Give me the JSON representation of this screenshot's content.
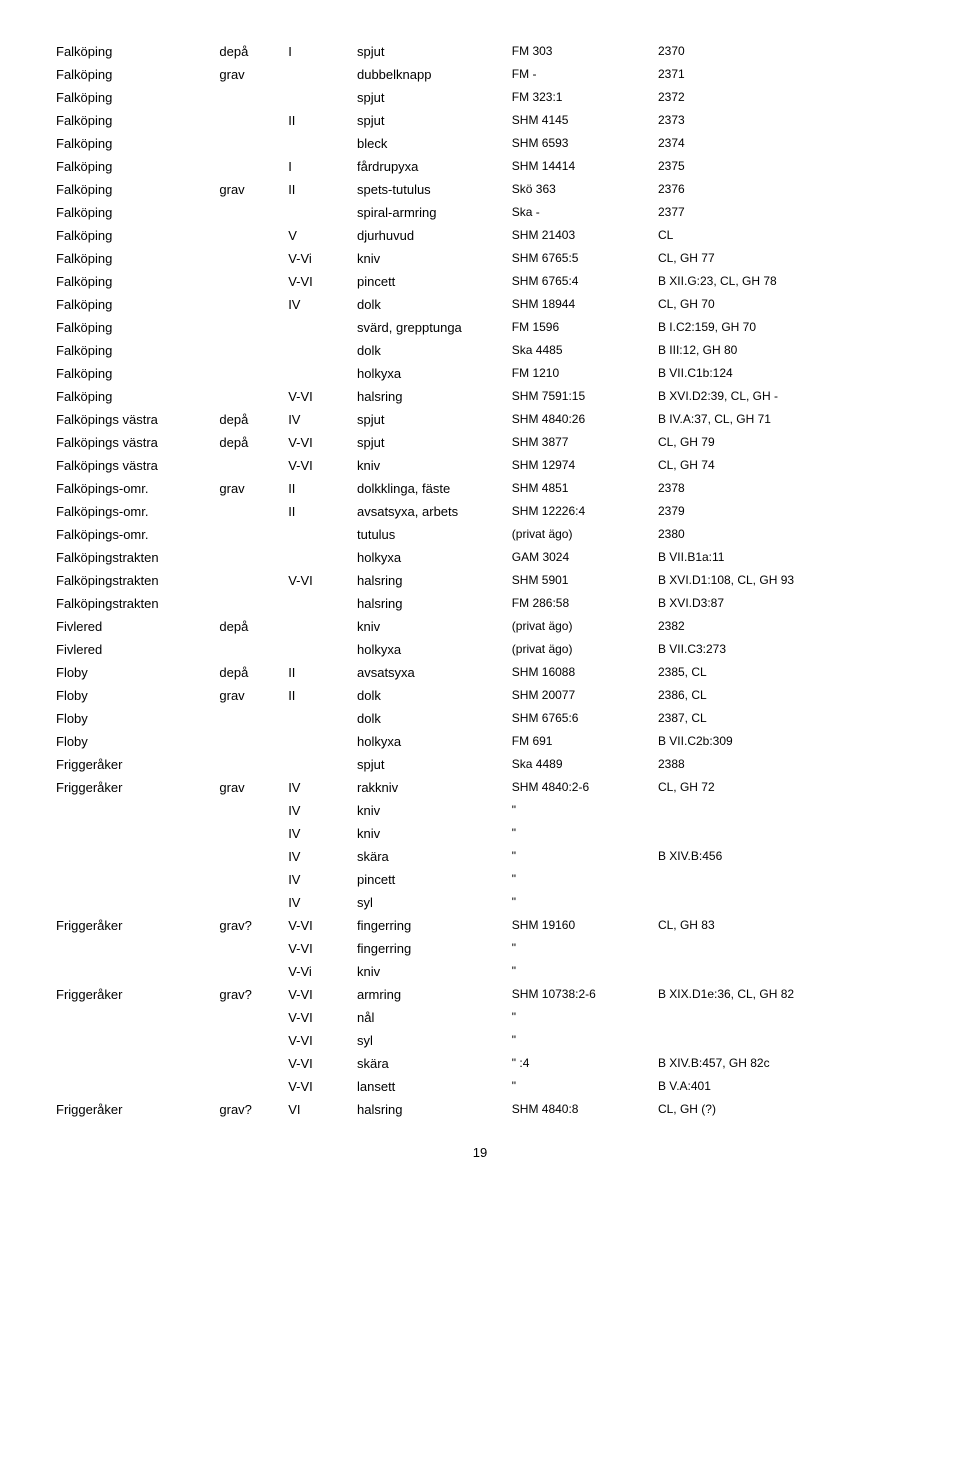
{
  "rows": [
    {
      "c1": "Falköping",
      "c2": "depå",
      "c3": "I",
      "c4": "spjut",
      "c5": "FM 303",
      "c6": "2370"
    },
    {
      "c1": "Falköping",
      "c2": "grav",
      "c3": "",
      "c4": "dubbelknapp",
      "c5": "FM -",
      "c6": "2371"
    },
    {
      "c1": "Falköping",
      "c2": "",
      "c3": "",
      "c4": "spjut",
      "c5": "FM 323:1",
      "c6": "2372"
    },
    {
      "c1": "Falköping",
      "c2": "",
      "c3": "II",
      "c4": "spjut",
      "c5": "SHM 4145",
      "c6": "2373"
    },
    {
      "c1": "Falköping",
      "c2": "",
      "c3": "",
      "c4": "bleck",
      "c5": "SHM 6593",
      "c6": "2374"
    },
    {
      "c1": "Falköping",
      "c2": "",
      "c3": "I",
      "c4": "fårdrupyxa",
      "c5": "SHM 14414",
      "c6": "2375"
    },
    {
      "c1": "Falköping",
      "c2": "grav",
      "c3": "II",
      "c4": "spets-tutulus",
      "c5": "Skö 363",
      "c6": "2376"
    },
    {
      "c1": "Falköping",
      "c2": "",
      "c3": "",
      "c4": "spiral-armring",
      "c5": "Ska -",
      "c6": "2377"
    },
    {
      "c1": "Falköping",
      "c2": "",
      "c3": "V",
      "c4": "djurhuvud",
      "c5": "SHM 21403",
      "c6": "CL"
    },
    {
      "c1": "Falköping",
      "c2": "",
      "c3": "V-Vi",
      "c4": "kniv",
      "c5": "SHM 6765:5",
      "c6": "CL, GH 77"
    },
    {
      "c1": "Falköping",
      "c2": "",
      "c3": "V-VI",
      "c4": "pincett",
      "c5": "SHM 6765:4",
      "c6": "B XII.G:23, CL, GH 78"
    },
    {
      "c1": "Falköping",
      "c2": "",
      "c3": "IV",
      "c4": "dolk",
      "c5": "SHM 18944",
      "c6": "CL, GH 70"
    },
    {
      "c1": "Falköping",
      "c2": "",
      "c3": "",
      "c4": "svärd, grepptunga",
      "c5": "FM 1596",
      "c6": "B I.C2:159, GH 70"
    },
    {
      "c1": "Falköping",
      "c2": "",
      "c3": "",
      "c4": "dolk",
      "c5": "Ska 4485",
      "c6": "B III:12, GH 80"
    },
    {
      "c1": "Falköping",
      "c2": "",
      "c3": "",
      "c4": "holkyxa",
      "c5": "FM 1210",
      "c6": "B VII.C1b:124"
    },
    {
      "c1": "Falköping",
      "c2": "",
      "c3": "V-VI",
      "c4": "halsring",
      "c5": "SHM 7591:15",
      "c6": "B XVI.D2:39, CL, GH -"
    },
    {
      "c1": "Falköpings västra",
      "c2": "depå",
      "c3": "IV",
      "c4": "spjut",
      "c5": "SHM 4840:26",
      "c6": "B IV.A:37, CL, GH 71"
    },
    {
      "c1": "Falköpings västra",
      "c2": "depå",
      "c3": "V-VI",
      "c4": "spjut",
      "c5": "SHM 3877",
      "c6": "CL, GH 79"
    },
    {
      "c1": "Falköpings västra",
      "c2": "",
      "c3": "V-VI",
      "c4": "kniv",
      "c5": "SHM 12974",
      "c6": "CL, GH 74"
    },
    {
      "c1": "Falköpings-omr.",
      "c2": "grav",
      "c3": "II",
      "c4": "dolkklinga, fäste",
      "c5": "SHM 4851",
      "c6": "2378"
    },
    {
      "c1": "Falköpings-omr.",
      "c2": "",
      "c3": "II",
      "c4": "avsatsyxa, arbets",
      "c5": "SHM 12226:4",
      "c6": "2379"
    },
    {
      "c1": "Falköpings-omr.",
      "c2": "",
      "c3": "",
      "c4": "tutulus",
      "c5": "(privat ägo)",
      "c6": "2380"
    },
    {
      "c1": "Falköpingstrakten",
      "c2": "",
      "c3": "",
      "c4": "holkyxa",
      "c5": "GAM 3024",
      "c6": "B VII.B1a:11"
    },
    {
      "c1": "Falköpingstrakten",
      "c2": "",
      "c3": "V-VI",
      "c4": "halsring",
      "c5": "SHM 5901",
      "c6": "B XVI.D1:108, CL, GH 93"
    },
    {
      "c1": "Falköpingstrakten",
      "c2": "",
      "c3": "",
      "c4": "halsring",
      "c5": "FM 286:58",
      "c6": "B XVI.D3:87"
    },
    {
      "c1": "Fivlered",
      "c2": "depå",
      "c3": "",
      "c4": "kniv",
      "c5": "(privat ägo)",
      "c6": "2382"
    },
    {
      "c1": "Fivlered",
      "c2": "",
      "c3": "",
      "c4": "holkyxa",
      "c5": "(privat ägo)",
      "c6": "B VII.C3:273"
    },
    {
      "c1": "Floby",
      "c2": "depå",
      "c3": "II",
      "c4": "avsatsyxa",
      "c5": "SHM 16088",
      "c6": "2385, CL"
    },
    {
      "c1": "Floby",
      "c2": "grav",
      "c3": "II",
      "c4": "dolk",
      "c5": "SHM 20077",
      "c6": "2386, CL"
    },
    {
      "c1": "Floby",
      "c2": "",
      "c3": "",
      "c4": "dolk",
      "c5": "SHM 6765:6",
      "c6": "2387, CL"
    },
    {
      "c1": "Floby",
      "c2": "",
      "c3": "",
      "c4": "holkyxa",
      "c5": "FM 691",
      "c6": "B VII.C2b:309"
    },
    {
      "c1": "Friggeråker",
      "c2": "",
      "c3": "",
      "c4": "spjut",
      "c5": "Ska 4489",
      "c6": "2388"
    },
    {
      "c1": "Friggeråker",
      "c2": "grav",
      "c3": "IV",
      "c4": "rakkniv",
      "c5": "SHM 4840:2-6",
      "c6": "CL, GH 72"
    },
    {
      "c1": "",
      "c2": "",
      "c3": "IV",
      "c4": "kniv",
      "c5": "\"",
      "c6": ""
    },
    {
      "c1": "",
      "c2": "",
      "c3": "IV",
      "c4": "kniv",
      "c5": "\"",
      "c6": ""
    },
    {
      "c1": "",
      "c2": "",
      "c3": "IV",
      "c4": "skära",
      "c5": "\"",
      "c6": "B XIV.B:456"
    },
    {
      "c1": "",
      "c2": "",
      "c3": "IV",
      "c4": "pincett",
      "c5": "\"",
      "c6": ""
    },
    {
      "c1": "",
      "c2": "",
      "c3": "IV",
      "c4": "syl",
      "c5": "\"",
      "c6": ""
    },
    {
      "c1": "Friggeråker",
      "c2": "grav?",
      "c3": "V-VI",
      "c4": "fingerring",
      "c5": "SHM 19160",
      "c6": "CL, GH 83"
    },
    {
      "c1": "",
      "c2": "",
      "c3": "V-VI",
      "c4": "fingerring",
      "c5": "\"",
      "c6": ""
    },
    {
      "c1": "",
      "c2": "",
      "c3": "V-Vi",
      "c4": "kniv",
      "c5": "\"",
      "c6": ""
    },
    {
      "c1": "Friggeråker",
      "c2": "grav?",
      "c3": "V-VI",
      "c4": "armring",
      "c5": "SHM 10738:2-6",
      "c6": "B XIX.D1e:36, CL, GH 82"
    },
    {
      "c1": "",
      "c2": "",
      "c3": "V-VI",
      "c4": "nål",
      "c5": "\"",
      "c6": ""
    },
    {
      "c1": "",
      "c2": "",
      "c3": "V-VI",
      "c4": "syl",
      "c5": "\"",
      "c6": ""
    },
    {
      "c1": "",
      "c2": "",
      "c3": "V-VI",
      "c4": "skära",
      "c5": "\" :4",
      "c6": "B XIV.B:457, GH 82c"
    },
    {
      "c1": "",
      "c2": "",
      "c3": "V-VI",
      "c4": "lansett",
      "c5": "\"",
      "c6": "B V.A:401"
    },
    {
      "c1": "Friggeråker",
      "c2": "grav?",
      "c3": "VI",
      "c4": "halsring",
      "c5": "SHM 4840:8",
      "c6": "CL, GH (?)"
    }
  ],
  "page_number": "19"
}
